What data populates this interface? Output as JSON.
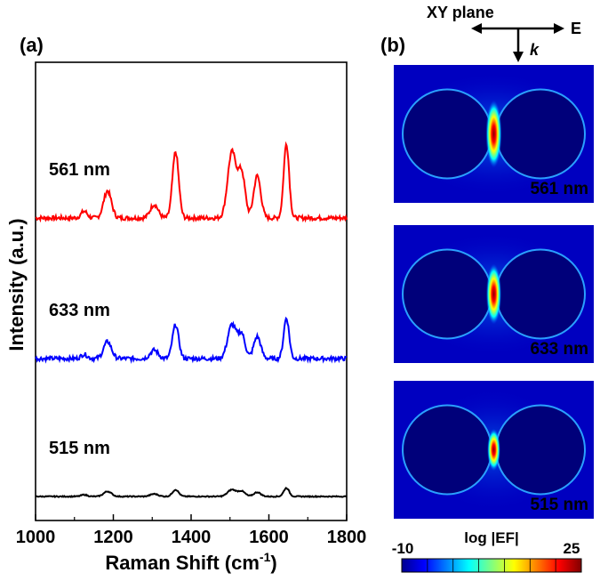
{
  "panel_a": {
    "label": "(a)",
    "chart_data": {
      "type": "line",
      "xlabel": "Raman Shift (cm-1)",
      "xlabel_main": "Raman Shift (cm",
      "xlabel_sup": "-1",
      "xlabel_close": ")",
      "ylabel": "Intensity (a.u.)",
      "xlim": [
        1000,
        1800
      ],
      "x_ticks": [
        "1000",
        "1200",
        "1400",
        "1600",
        "1800"
      ],
      "grid": false,
      "legend": "none (series labels placed left of each trace)",
      "peaks_cm1": [
        1125,
        1185,
        1305,
        1360,
        1505,
        1530,
        1570,
        1645
      ],
      "series": [
        {
          "name": "561 nm",
          "color": "#ff0000",
          "baseline": 1.0,
          "peak_heights": [
            0.08,
            0.32,
            0.16,
            0.78,
            0.78,
            0.52,
            0.5,
            0.88
          ]
        },
        {
          "name": "633 nm",
          "color": "#0000ff",
          "baseline": 0.0,
          "peak_heights": [
            0.05,
            0.2,
            0.1,
            0.4,
            0.4,
            0.28,
            0.26,
            0.48
          ]
        },
        {
          "name": "515 nm",
          "color": "#000000",
          "baseline": -1.0,
          "peak_heights": [
            0.02,
            0.06,
            0.03,
            0.08,
            0.08,
            0.06,
            0.05,
            0.1
          ]
        }
      ]
    }
  },
  "panel_b": {
    "label": "(b)",
    "plane_label": "XY plane",
    "e_label": "E",
    "k_label": "k",
    "maps": [
      {
        "name": "561 nm",
        "hotspot_strength": 1.0
      },
      {
        "name": "633 nm",
        "hotspot_strength": 0.85
      },
      {
        "name": "515 nm",
        "hotspot_strength": 0.45
      }
    ],
    "colorbar": {
      "title": "log |EF|",
      "min_label": "-10",
      "max_label": "25",
      "colors": [
        "#00008f",
        "#0000ff",
        "#0080ff",
        "#00ffff",
        "#80ff80",
        "#ffff00",
        "#ff8000",
        "#ff0000",
        "#800000"
      ]
    }
  }
}
